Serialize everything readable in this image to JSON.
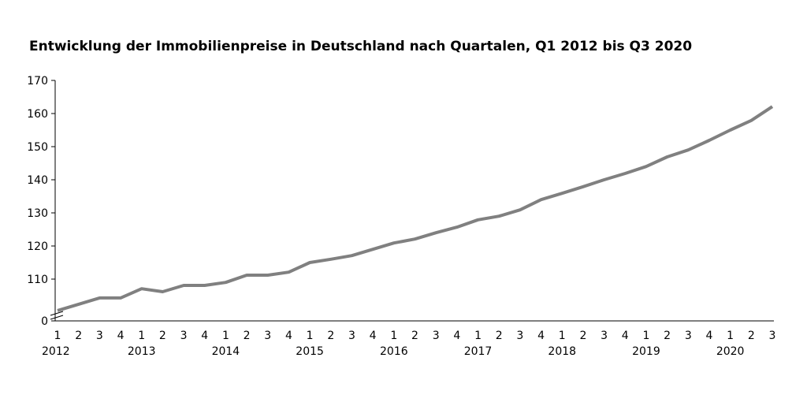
{
  "chart_data": {
    "type": "line",
    "title": "Entwicklung der Immobilienpreise in Deutschland nach Quartalen, Q1 2012 bis Q3 2020",
    "xlabel": "",
    "ylabel": "",
    "quarters": [
      "1",
      "2",
      "3",
      "4",
      "1",
      "2",
      "3",
      "4",
      "1",
      "2",
      "3",
      "4",
      "1",
      "2",
      "3",
      "4",
      "1",
      "2",
      "3",
      "4",
      "1",
      "2",
      "3",
      "4",
      "1",
      "2",
      "3",
      "4",
      "1",
      "2",
      "3",
      "4",
      "1",
      "2",
      "3"
    ],
    "years": [
      "2012",
      "2013",
      "2014",
      "2015",
      "2016",
      "2017",
      "2018",
      "2019",
      "2020"
    ],
    "yticks": [
      0,
      110,
      120,
      130,
      140,
      150,
      160,
      170
    ],
    "ylim": [
      100,
      170
    ],
    "y_axis_break": true,
    "grid": false,
    "line_color": "#808080",
    "series": [
      {
        "values": [
          100.5,
          102.4,
          104.3,
          104.3,
          107.1,
          106.2,
          108.1,
          108.1,
          109,
          111.2,
          111.2,
          112.1,
          115,
          116,
          117.1,
          119,
          120.9,
          122.1,
          124,
          125.7,
          127.9,
          129,
          130.9,
          134,
          135.9,
          137.9,
          140,
          141.9,
          144,
          146.9,
          149,
          151.9,
          155,
          157.9,
          162.1
        ]
      }
    ]
  }
}
